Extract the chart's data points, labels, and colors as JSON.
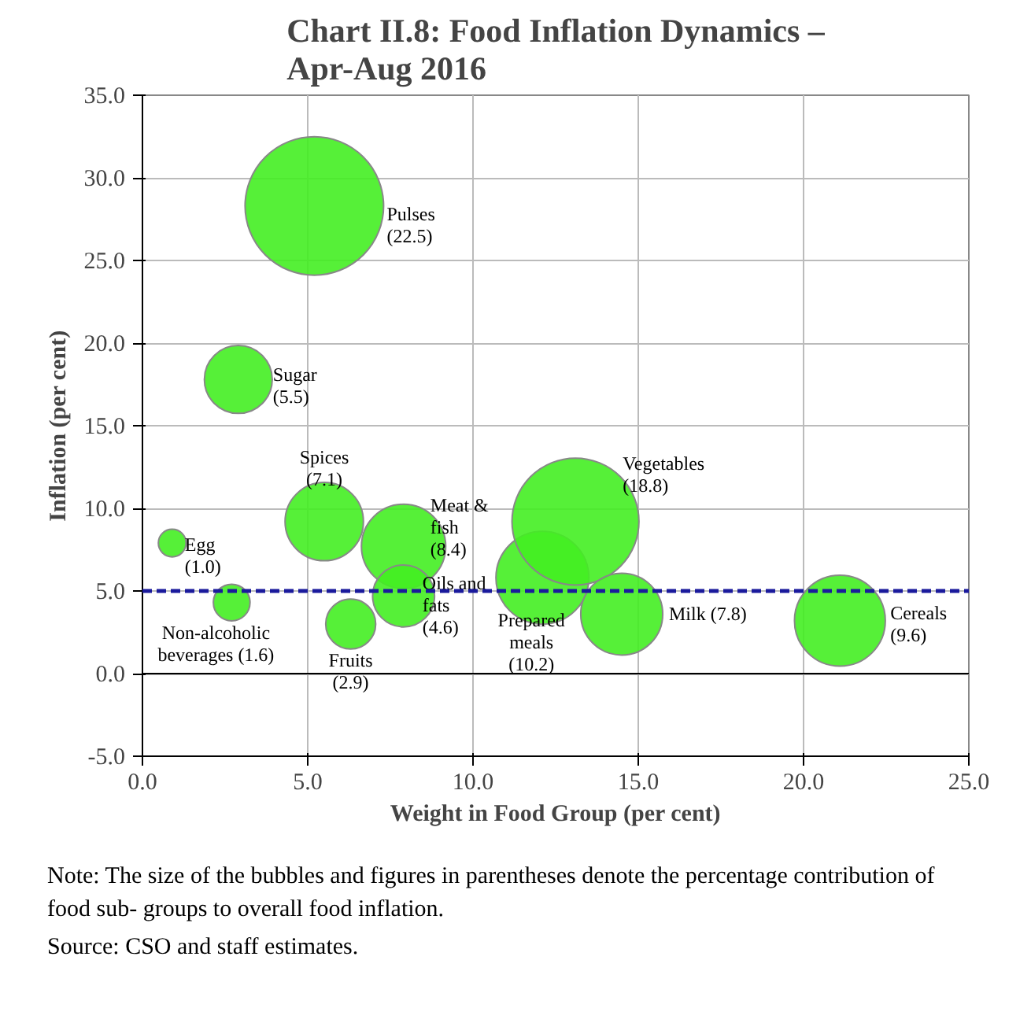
{
  "chart_data": {
    "type": "bubble",
    "title": "Chart II.8: Food Inflation Dynamics – Apr-Aug 2016",
    "xlabel": "Weight in Food Group (per cent)",
    "ylabel": "Inflation (per cent)",
    "xlim": [
      0,
      25
    ],
    "xticks": [
      {
        "value": 0,
        "label": "0.0"
      },
      {
        "value": 5,
        "label": "5.0"
      },
      {
        "value": 10,
        "label": "10.0"
      },
      {
        "value": 15,
        "label": "15.0"
      },
      {
        "value": 20,
        "label": "20.0"
      },
      {
        "value": 25,
        "label": "25.0"
      }
    ],
    "ylim": [
      -5,
      35
    ],
    "yticks": [
      {
        "value": -5,
        "label": "-5.0"
      },
      {
        "value": 0,
        "label": "0.0"
      },
      {
        "value": 5,
        "label": "5.0"
      },
      {
        "value": 10,
        "label": "10.0"
      },
      {
        "value": 15,
        "label": "15.0"
      },
      {
        "value": 20,
        "label": "20.0"
      },
      {
        "value": 25,
        "label": "25.0"
      },
      {
        "value": 30,
        "label": "30.0"
      },
      {
        "value": 35,
        "label": "35.0"
      }
    ],
    "grid": true,
    "legend": false,
    "ref_lines": [
      {
        "axis": "y",
        "value": 5,
        "color": "#1a1a9c",
        "line_style": "dashed"
      }
    ],
    "series": [
      {
        "name": "Pulses (22.5)",
        "color": "#44ee22",
        "x": [
          5.2
        ],
        "values": [
          28.3
        ],
        "sizes": [
          1.0
        ]
      },
      {
        "name": "Sugar (5.5)",
        "color": "#44ee22",
        "x": [
          2.9
        ],
        "values": [
          17.8
        ],
        "sizes": [
          0.24
        ]
      },
      {
        "name": "Egg (1.0)",
        "color": "#44ee22",
        "x": [
          0.9
        ],
        "values": [
          7.9
        ],
        "sizes": [
          0.04
        ]
      },
      {
        "name": "Non-alcoholic beverages (1.6)",
        "color": "#44ee22",
        "x": [
          2.7
        ],
        "values": [
          4.3
        ],
        "sizes": [
          0.07
        ]
      },
      {
        "name": "Spices (7.1)",
        "color": "#44ee22",
        "x": [
          5.5
        ],
        "values": [
          9.2
        ],
        "sizes": [
          0.32
        ]
      },
      {
        "name": "Meat & fish (8.4)",
        "color": "#44ee22",
        "x": [
          7.9
        ],
        "values": [
          7.7
        ],
        "sizes": [
          0.37
        ]
      },
      {
        "name": "Oils and fats (4.6)",
        "color": "#44ee22",
        "x": [
          7.9
        ],
        "values": [
          4.7
        ],
        "sizes": [
          0.2
        ]
      },
      {
        "name": "Fruits (2.9)",
        "color": "#44ee22",
        "x": [
          6.3
        ],
        "values": [
          3.0
        ],
        "sizes": [
          0.13
        ]
      },
      {
        "name": "Prepared meals (10.2)",
        "color": "#44ee22",
        "x": [
          12.1
        ],
        "values": [
          5.8
        ],
        "sizes": [
          0.45
        ]
      },
      {
        "name": "Vegetables (18.8)",
        "color": "#44ee22",
        "x": [
          13.1
        ],
        "values": [
          9.2
        ],
        "sizes": [
          0.84
        ]
      },
      {
        "name": "Milk (7.8)",
        "color": "#44ee22",
        "x": [
          14.5
        ],
        "values": [
          3.6
        ],
        "sizes": [
          0.35
        ]
      },
      {
        "name": "Cereals (9.6)",
        "color": "#44ee22",
        "x": [
          21.1
        ],
        "values": [
          3.2
        ],
        "sizes": [
          0.43
        ]
      }
    ],
    "annotations": [
      "Note: The size of the bubbles and figures in parentheses denote the percentage contribution of food sub- groups to overall food inflation.",
      "Source: CSO and staff estimates."
    ]
  }
}
